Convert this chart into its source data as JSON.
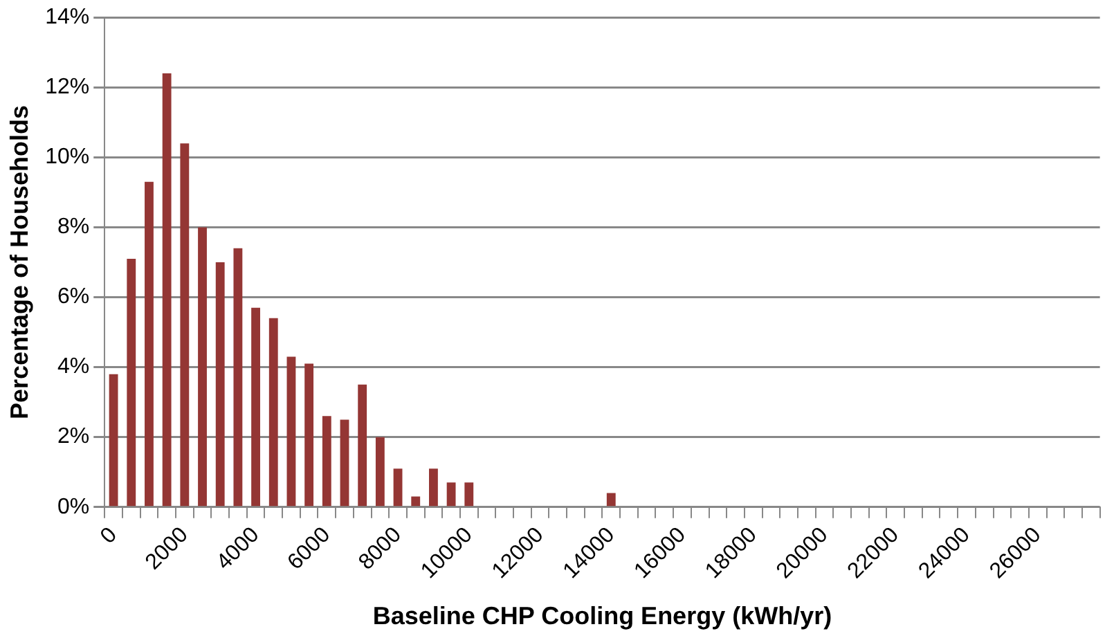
{
  "chart_data": {
    "type": "bar",
    "xlabel": "Baseline CHP Cooling Energy (kWh/yr)",
    "ylabel": "Percentage of Households",
    "categories": [
      "0",
      null,
      null,
      null,
      "2000",
      null,
      null,
      null,
      "4000",
      null,
      null,
      null,
      "6000",
      null,
      null,
      null,
      "8000",
      null,
      null,
      null,
      "10000",
      null,
      null,
      null,
      "12000",
      null,
      null,
      null,
      "14000",
      null,
      null,
      null,
      "16000",
      null,
      null,
      null,
      "18000",
      null,
      null,
      null,
      "20000",
      null,
      null,
      null,
      "22000",
      null,
      null,
      null,
      "24000",
      null,
      null,
      null,
      "26000",
      null,
      null,
      null
    ],
    "values": [
      3.8,
      7.1,
      9.3,
      12.4,
      10.4,
      8.0,
      7.0,
      7.4,
      5.7,
      5.4,
      4.3,
      4.1,
      2.6,
      2.5,
      3.5,
      2.0,
      1.1,
      0.3,
      1.1,
      0.7,
      0.7,
      0,
      0,
      0,
      0,
      0,
      0,
      0,
      0.4,
      0,
      0,
      0,
      0,
      0,
      0,
      0,
      0,
      0,
      0,
      0,
      0,
      0,
      0,
      0,
      0,
      0,
      0,
      0,
      0,
      0,
      0,
      0,
      0,
      0,
      0,
      0
    ],
    "color": "#943634",
    "ylim": [
      0,
      14
    ],
    "yticks": [
      {
        "value": 0,
        "label": "0%"
      },
      {
        "value": 2,
        "label": "2%"
      },
      {
        "value": 4,
        "label": "4%"
      },
      {
        "value": 6,
        "label": "6%"
      },
      {
        "value": 8,
        "label": "8%"
      },
      {
        "value": 10,
        "label": "10%"
      },
      {
        "value": 12,
        "label": "12%"
      },
      {
        "value": 14,
        "label": "14%"
      }
    ],
    "grid": "y",
    "legend": false
  }
}
